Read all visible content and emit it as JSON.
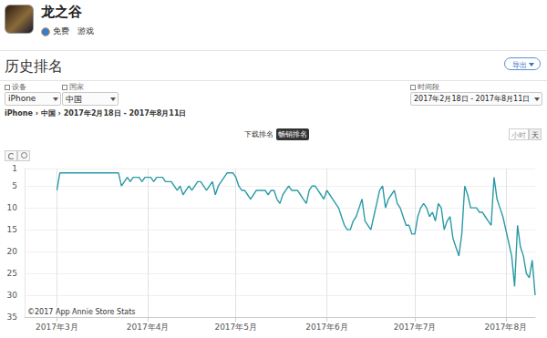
{
  "page": {
    "app": {
      "name": "龙之谷",
      "tags": [
        "免费",
        "游戏"
      ]
    },
    "section_title": "历史排名",
    "export_button": "导出",
    "filters": [
      {
        "label": "设备",
        "value": "iPhone"
      },
      {
        "label": "国家",
        "value": "中国"
      },
      {
        "label": "时间段",
        "value": "2017年2月18日 - 2017年8月11日"
      }
    ],
    "breadcrumb": "iPhone › 中国 › 2017年2月18日 - 2017年8月11日",
    "tabs": [
      {
        "label": "下载排名",
        "active": false
      },
      {
        "label": "畅销排名",
        "active": true
      }
    ],
    "granularity": [
      {
        "label": "小时",
        "active": false
      },
      {
        "label": "天",
        "active": true
      }
    ],
    "copyright": "©2017 App Annie Store Stats"
  },
  "chart_data": {
    "type": "line",
    "color": "#2a9aa6",
    "grid": true,
    "ylim": [
      35,
      1
    ],
    "yticks": [
      1,
      5,
      10,
      15,
      20,
      25,
      30,
      35
    ],
    "categories": [
      null,
      null,
      null,
      null,
      null,
      null,
      null,
      null,
      null,
      null,
      null,
      "2017年3月",
      null,
      null,
      null,
      null,
      null,
      null,
      null,
      null,
      null,
      null,
      null,
      null,
      null,
      null,
      null,
      null,
      null,
      null,
      null,
      null,
      null,
      null,
      null,
      null,
      null,
      null,
      null,
      null,
      null,
      null,
      "2017年4月",
      null,
      null,
      null,
      null,
      null,
      null,
      null,
      null,
      null,
      null,
      null,
      null,
      null,
      null,
      null,
      null,
      null,
      null,
      null,
      null,
      null,
      null,
      null,
      null,
      null,
      null,
      null,
      null,
      null,
      "2017年5月",
      null,
      null,
      null,
      null,
      null,
      null,
      null,
      null,
      null,
      null,
      null,
      null,
      null,
      null,
      null,
      null,
      null,
      null,
      null,
      null,
      null,
      null,
      null,
      null,
      null,
      null,
      null,
      null,
      null,
      null,
      "2017年6月",
      null,
      null,
      null,
      null,
      null,
      null,
      null,
      null,
      null,
      null,
      null,
      null,
      null,
      null,
      null,
      null,
      null,
      null,
      null,
      null,
      null,
      null,
      null,
      null,
      null,
      null,
      null,
      null,
      null,
      "2017年7月",
      null,
      null,
      null,
      null,
      null,
      null,
      null,
      null,
      null,
      null,
      null,
      null,
      null,
      null,
      null,
      null,
      null,
      null,
      null,
      null,
      null,
      null,
      null,
      null,
      null,
      null,
      null,
      null,
      null,
      null,
      "2017年8月",
      null,
      null,
      null,
      null,
      null,
      null,
      null,
      null,
      null,
      null
    ],
    "values": [
      null,
      null,
      null,
      null,
      null,
      null,
      null,
      null,
      null,
      null,
      null,
      6,
      2,
      2,
      2,
      2,
      2,
      2,
      2,
      2,
      2,
      2,
      2,
      2,
      2,
      2,
      2,
      2,
      2,
      2,
      2,
      2,
      2,
      5,
      4,
      3,
      4,
      3,
      3,
      3,
      4,
      3,
      3,
      3,
      4,
      3,
      3,
      3,
      4,
      4,
      4,
      5,
      6,
      5,
      7,
      6,
      5,
      6,
      5,
      4,
      4,
      5,
      6,
      5,
      4,
      7,
      5,
      4,
      3,
      2,
      2,
      2,
      3,
      5,
      6,
      6,
      7,
      8,
      7,
      6,
      6,
      6,
      6,
      7,
      6,
      6,
      8,
      9,
      7,
      6,
      5,
      6,
      6,
      6,
      7,
      8,
      9,
      6,
      5,
      5,
      6,
      7,
      8,
      6,
      7,
      8,
      9,
      10,
      12,
      14,
      15,
      15,
      13,
      12,
      10,
      8,
      13,
      14,
      15,
      12,
      9,
      6,
      5,
      10,
      8,
      7,
      6,
      9,
      10,
      12,
      14,
      14,
      16,
      16,
      12,
      10,
      9,
      10,
      12,
      11,
      13,
      9,
      10,
      15,
      13,
      12,
      17,
      19,
      21,
      16,
      5,
      7,
      10,
      10,
      10,
      11,
      11,
      12,
      13,
      14,
      3,
      8,
      10,
      12,
      15,
      18,
      21,
      28,
      14,
      19,
      21,
      25,
      26,
      22,
      30
    ]
  }
}
